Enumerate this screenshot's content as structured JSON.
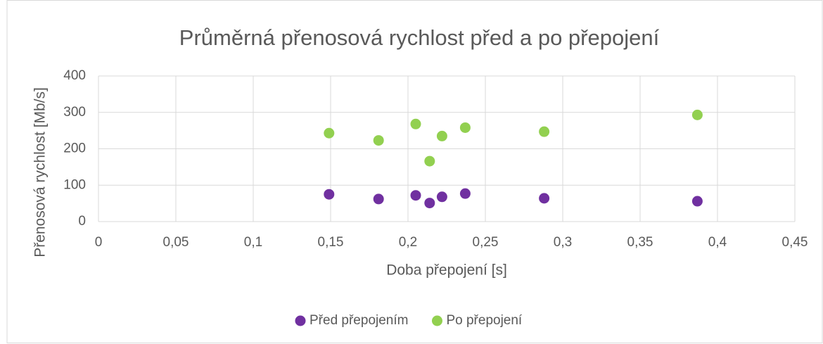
{
  "chart_data": {
    "type": "scatter",
    "title": "Průměrná přenosová rychlost před a po přepojení",
    "x_label": "Doba přepojení [s]",
    "y_label": "Přenosová rychlost [Mb/s]",
    "x": [
      0.149,
      0.181,
      0.205,
      0.214,
      0.222,
      0.237,
      0.288,
      0.387
    ],
    "series": [
      {
        "name": "Před přepojením",
        "color": "#7030a0",
        "values": [
          75,
          62,
          72,
          51,
          68,
          77,
          64,
          56
        ]
      },
      {
        "name": "Po přepojení",
        "color": "#92d050",
        "values": [
          243,
          223,
          268,
          166,
          235,
          258,
          247,
          293
        ]
      }
    ],
    "xlim": [
      0,
      0.45
    ],
    "xticks": [
      0,
      {
        "value": 0.05,
        "label": "0,05"
      },
      {
        "value": 0.1,
        "label": "0,1"
      },
      {
        "value": 0.15,
        "label": "0,15"
      },
      {
        "value": 0.2,
        "label": "0,2"
      },
      {
        "value": 0.25,
        "label": "0,25"
      },
      {
        "value": 0.3,
        "label": "0,3"
      },
      {
        "value": 0.35,
        "label": "0,35"
      },
      {
        "value": 0.4,
        "label": "0,4"
      },
      {
        "value": 0.45,
        "label": "0,45"
      }
    ],
    "ylim": [
      0,
      400
    ],
    "yticks": [
      0,
      100,
      200,
      300,
      400
    ],
    "grid": true,
    "legend": "bottom"
  }
}
